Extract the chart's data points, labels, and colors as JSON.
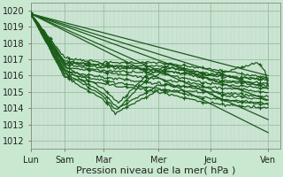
{
  "background_color": "#c8e8d0",
  "plot_bg_color": "#d0e8d8",
  "grid_color_minor": "#b8d8c0",
  "grid_color_major": "#90b898",
  "line_color": "#1a5c1a",
  "xlabel": "Pression niveau de la mer( hPa )",
  "ylim": [
    1011.5,
    1020.5
  ],
  "yticks": [
    1012,
    1013,
    1014,
    1015,
    1016,
    1017,
    1018,
    1019,
    1020
  ],
  "xtick_labels": [
    "Lun",
    "Sam",
    "Mar",
    "Mer",
    "Jeu",
    "Ven"
  ],
  "xtick_positions": [
    0.0,
    0.135,
    0.29,
    0.51,
    0.72,
    0.95
  ],
  "xlabel_fontsize": 8,
  "ytick_fontsize": 7,
  "xtick_fontsize": 7
}
